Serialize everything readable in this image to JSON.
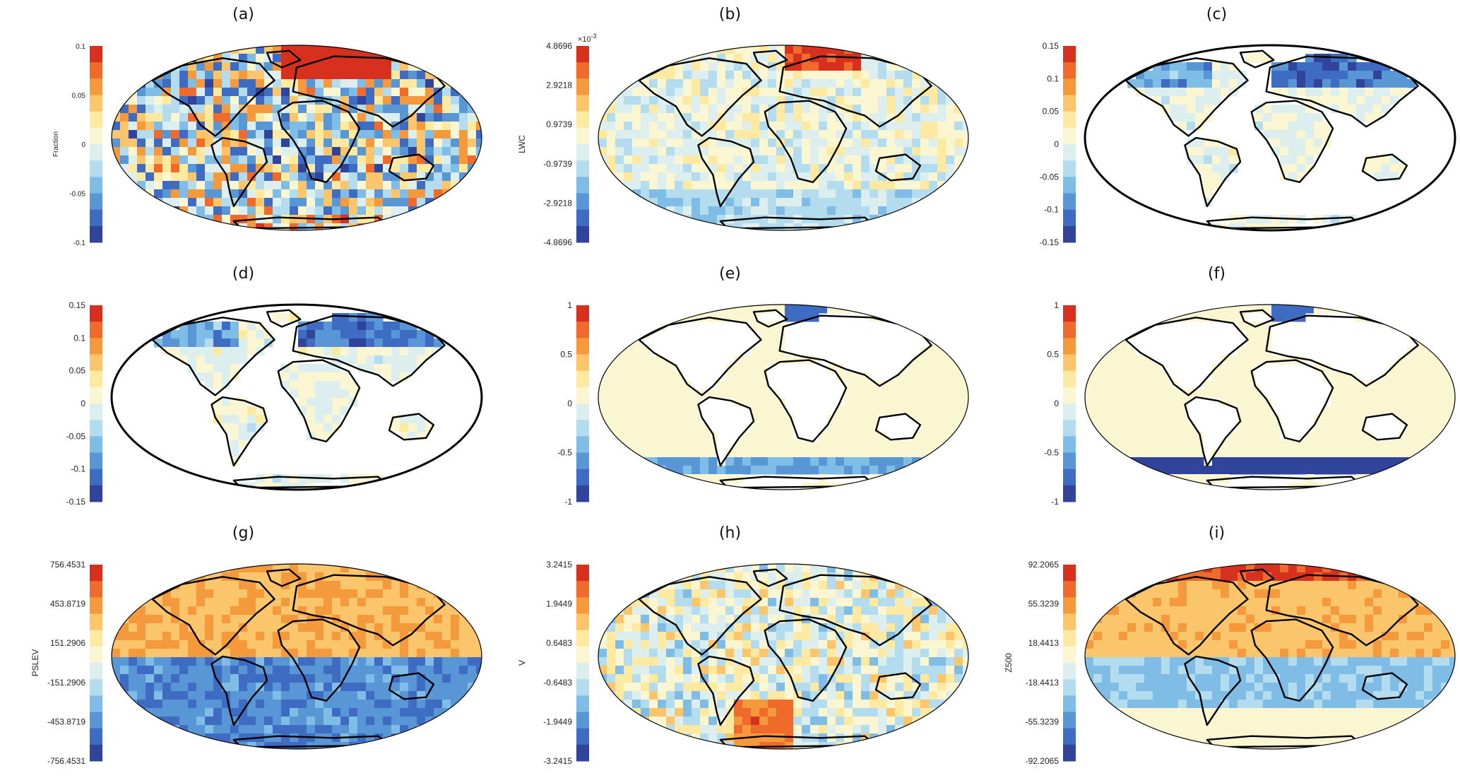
{
  "figure": {
    "panels": [
      {
        "label": "(a)",
        "cbar_label": "Fraction",
        "exponent": "",
        "ticks": [
          "0.1",
          "0.05",
          "0",
          "-0.05",
          "-0.1"
        ],
        "pattern": "noisy",
        "small_ticks": true
      },
      {
        "label": "(b)",
        "cbar_label": "LWC",
        "exponent": "×10",
        "exponent_power": "-3",
        "ticks": [
          "4.8696",
          "2.9218",
          "0.9739",
          "-0.9739",
          "-2.9218",
          "-4.8696"
        ],
        "pattern": "mild"
      },
      {
        "label": "(c)",
        "cbar_label": "",
        "exponent": "",
        "ticks": [
          "0.15",
          "0.1",
          "0.05",
          "0",
          "-0.05",
          "-0.1",
          "-0.15"
        ],
        "pattern": "land"
      },
      {
        "label": "(d)",
        "cbar_label": "",
        "exponent": "",
        "ticks": [
          "0.15",
          "0.1",
          "0.05",
          "0",
          "-0.05",
          "-0.1",
          "-0.15"
        ],
        "pattern": "land"
      },
      {
        "label": "(e)",
        "cbar_label": "",
        "exponent": "",
        "ticks": [
          "1",
          "0.5",
          "0",
          "-0.5",
          "-1"
        ],
        "pattern": "ocean"
      },
      {
        "label": "(f)",
        "cbar_label": "",
        "exponent": "",
        "ticks": [
          "1",
          "0.5",
          "0",
          "-0.5",
          "-1"
        ],
        "pattern": "ocean2"
      },
      {
        "label": "(g)",
        "cbar_label": "PSLEV",
        "exponent": "",
        "ticks": [
          "756.4531",
          "453.8719",
          "151.2906",
          "-151.2906",
          "-453.8719",
          "-756.4531"
        ],
        "pattern": "hemi"
      },
      {
        "label": "(h)",
        "cbar_label": "V",
        "exponent": "",
        "ticks": [
          "3.2415",
          "1.9449",
          "0.6483",
          "-0.6483",
          "-1.9449",
          "-3.2415"
        ],
        "pattern": "mild2"
      },
      {
        "label": "(i)",
        "cbar_label": "Z500",
        "exponent": "",
        "ticks": [
          "92.2065",
          "55.3239",
          "18.4413",
          "-18.4413",
          "-55.3239",
          "-92.2065"
        ],
        "pattern": "hemi2"
      }
    ],
    "colormap": [
      "#d7301f",
      "#ef6a2b",
      "#f59a3c",
      "#fbc56b",
      "#fde9a0",
      "#fbf6d2",
      "#dcefee",
      "#b3dcee",
      "#80bde6",
      "#5896d6",
      "#3f6cc3",
      "#30449c"
    ]
  }
}
